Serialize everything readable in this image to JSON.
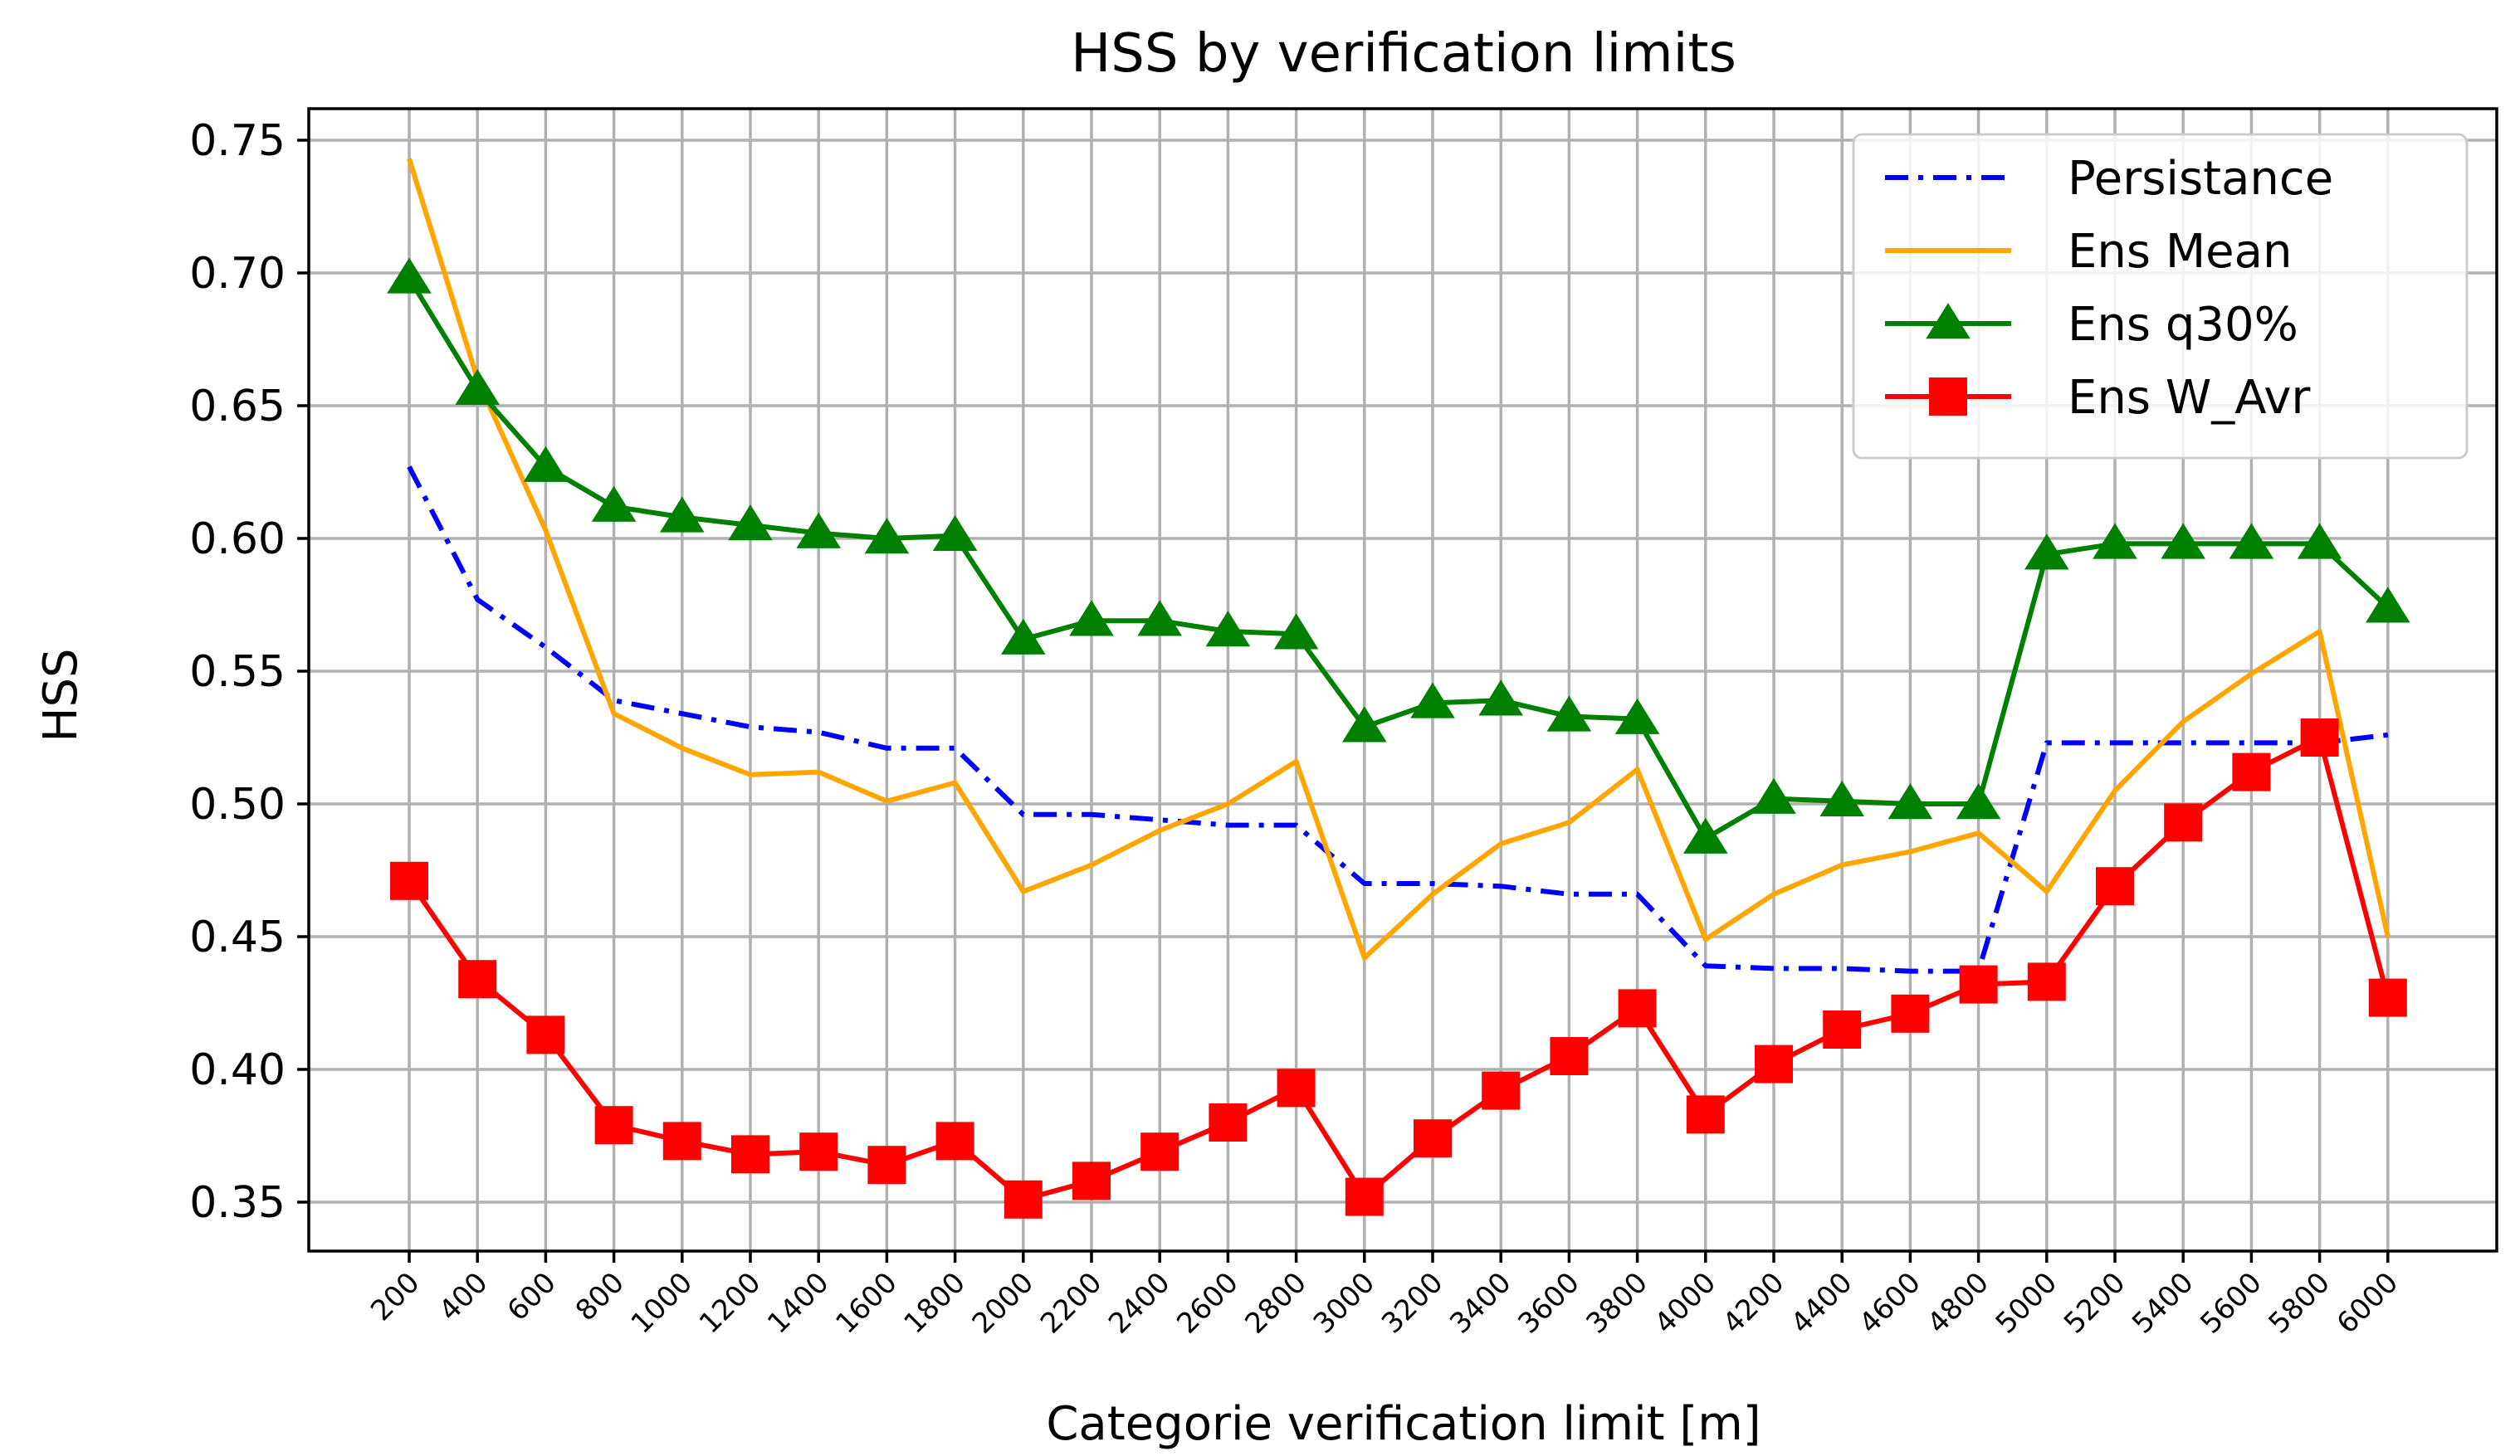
{
  "chart_data": {
    "type": "line",
    "title": "HSS by verification limits",
    "xlabel": "Categorie verification limit [m]",
    "ylabel": "HSS",
    "categories": [
      "200",
      "400",
      "600",
      "800",
      "1000",
      "1200",
      "1400",
      "1600",
      "1800",
      "2000",
      "2200",
      "2400",
      "2600",
      "2800",
      "3000",
      "3200",
      "3400",
      "3600",
      "3800",
      "4000",
      "4200",
      "4400",
      "4600",
      "4800",
      "5000",
      "5200",
      "5400",
      "5600",
      "5800",
      "6000"
    ],
    "ylim": [
      0.33,
      0.76
    ],
    "yticks": [
      0.35,
      0.4,
      0.45,
      0.5,
      0.55,
      0.6,
      0.65,
      0.7,
      0.75
    ],
    "ytick_labels": [
      "0.35",
      "0.40",
      "0.45",
      "0.50",
      "0.55",
      "0.60",
      "0.65",
      "0.70",
      "0.75"
    ],
    "grid": true,
    "legend_position": "top-right",
    "series": [
      {
        "name": "Persistance",
        "color": "#0000ff",
        "style": "dashdot",
        "marker": "none",
        "values": [
          0.627,
          0.577,
          0.559,
          0.539,
          0.534,
          0.529,
          0.527,
          0.521,
          0.521,
          0.496,
          0.496,
          0.494,
          0.492,
          0.492,
          0.47,
          0.47,
          0.469,
          0.466,
          0.466,
          0.439,
          0.438,
          0.438,
          0.437,
          0.437,
          0.523,
          0.523,
          0.523,
          0.523,
          0.523,
          0.526
        ]
      },
      {
        "name": "Ens Mean",
        "color": "#ffa500",
        "style": "solid",
        "marker": "none",
        "values": [
          0.743,
          0.66,
          0.603,
          0.534,
          0.521,
          0.511,
          0.512,
          0.501,
          0.508,
          0.467,
          0.477,
          0.49,
          0.5,
          0.516,
          0.442,
          0.466,
          0.485,
          0.493,
          0.513,
          0.449,
          0.466,
          0.477,
          0.482,
          0.489,
          0.467,
          0.505,
          0.531,
          0.549,
          0.565,
          0.45
        ]
      },
      {
        "name": "Ens q30%",
        "color": "#008000",
        "style": "solid",
        "marker": "triangle",
        "values": [
          0.698,
          0.656,
          0.627,
          0.612,
          0.608,
          0.605,
          0.602,
          0.6,
          0.601,
          0.562,
          0.569,
          0.569,
          0.565,
          0.564,
          0.529,
          0.538,
          0.539,
          0.533,
          0.532,
          0.487,
          0.502,
          0.501,
          0.5,
          0.5,
          0.594,
          0.598,
          0.598,
          0.598,
          0.598,
          0.574
        ]
      },
      {
        "name": "Ens W_Avr",
        "color": "#ff0000",
        "style": "solid",
        "marker": "square",
        "values": [
          0.471,
          0.434,
          0.413,
          0.379,
          0.373,
          0.368,
          0.369,
          0.364,
          0.373,
          0.351,
          0.358,
          0.369,
          0.38,
          0.393,
          0.352,
          0.374,
          0.392,
          0.405,
          0.423,
          0.383,
          0.402,
          0.415,
          0.421,
          0.432,
          0.433,
          0.469,
          0.493,
          0.512,
          0.525,
          0.427
        ]
      }
    ]
  }
}
